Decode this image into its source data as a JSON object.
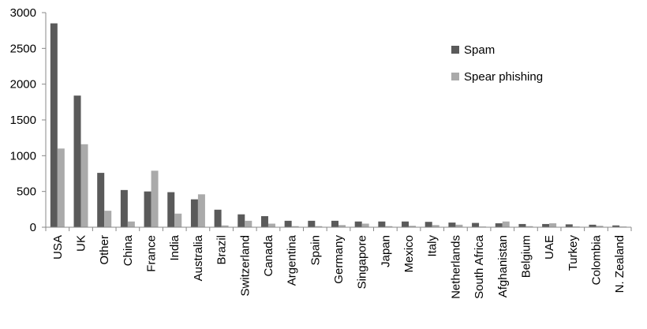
{
  "chart_data": {
    "type": "bar",
    "categories": [
      "USA",
      "UK",
      "Other",
      "China",
      "France",
      "India",
      "Australia",
      "Brazil",
      "Switzerland",
      "Canada",
      "Argentina",
      "Spain",
      "Germany",
      "Singapore",
      "Japan",
      "Mexico",
      "Italy",
      "Netherlands",
      "South Africa",
      "Afghanistan",
      "Belgium",
      "UAE",
      "Turkey",
      "Colombia",
      "N. Zealand"
    ],
    "series": [
      {
        "name": "Spam",
        "color": "#5a5a5a",
        "values": [
          2850,
          1840,
          760,
          520,
          500,
          490,
          390,
          245,
          180,
          155,
          90,
          90,
          90,
          80,
          80,
          80,
          75,
          65,
          60,
          55,
          45,
          45,
          40,
          35,
          25
        ]
      },
      {
        "name": "Spear phishing",
        "color": "#aaaaaa",
        "values": [
          1100,
          1160,
          230,
          80,
          790,
          190,
          460,
          25,
          90,
          50,
          15,
          15,
          30,
          50,
          15,
          20,
          30,
          35,
          10,
          80,
          15,
          55,
          10,
          20,
          10
        ]
      }
    ],
    "ylim": [
      0,
      3000
    ],
    "yticks": [
      0,
      500,
      1000,
      1500,
      2000,
      2500,
      3000
    ],
    "grid": false,
    "legend_position": "top-right"
  }
}
